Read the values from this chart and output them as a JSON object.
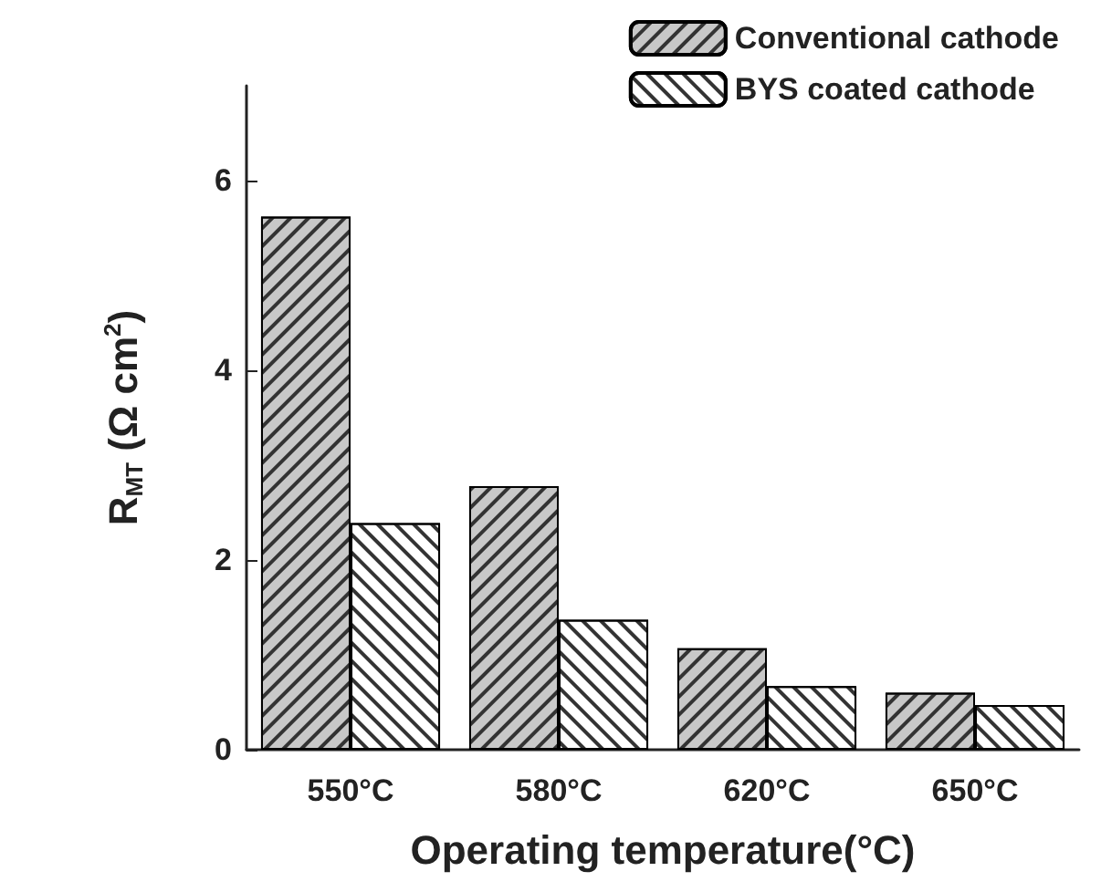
{
  "chart_data": {
    "type": "bar",
    "xlabel": "Operating temperature(°C)",
    "ylabel": "R$_{MT}$ (Ω cm$^{2}$)",
    "categories": [
      "550°C",
      "580°C",
      "620°C",
      "650°C"
    ],
    "series": [
      {
        "name": "Conventional cathode",
        "color": "#c8c8c8",
        "values": [
          5.62,
          2.78,
          1.07,
          0.6
        ]
      },
      {
        "name": "BYS coated cathode",
        "color": "#ffffff",
        "values": [
          2.39,
          1.37,
          0.67,
          0.47
        ]
      }
    ],
    "ylim": [
      0,
      7
    ],
    "yticks": [
      0,
      2,
      4,
      6
    ],
    "grid": false,
    "legend": "top right"
  }
}
